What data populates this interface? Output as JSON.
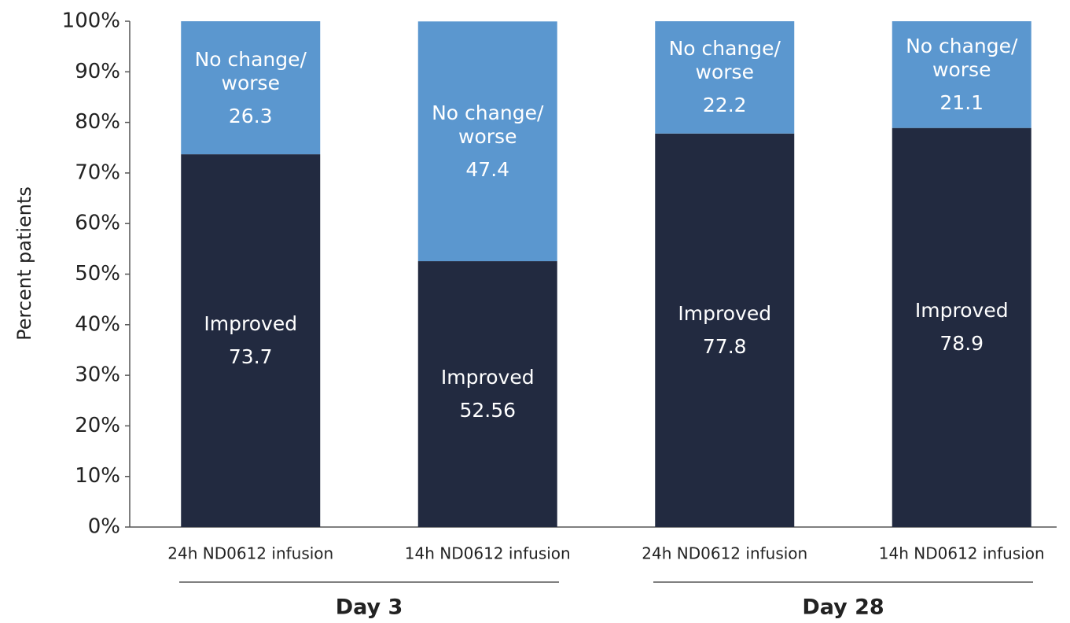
{
  "chart_data": {
    "type": "stacked_bar",
    "y_label": "Percent patients",
    "categories": [
      "24h ND0612 infusion",
      "14h ND0612 infusion",
      "24h ND0612 infusion",
      "14h ND0612 infusion"
    ],
    "groups": [
      "Day 3",
      "Day 28"
    ],
    "series": [
      {
        "name": "Improved",
        "color": "#222a40",
        "values": [
          73.7,
          52.56,
          77.8,
          78.9
        ]
      },
      {
        "name": "No change/ worse",
        "color": "#5b97cf",
        "values": [
          26.3,
          47.4,
          22.2,
          21.1
        ]
      }
    ],
    "ylim": [
      0,
      100
    ],
    "yticks": [
      {
        "value": 0,
        "label": "0%"
      },
      {
        "value": 10,
        "label": "10%"
      },
      {
        "value": 20,
        "label": "20%"
      },
      {
        "value": 30,
        "label": "30%"
      },
      {
        "value": 40,
        "label": "40%"
      },
      {
        "value": 50,
        "label": "50%"
      },
      {
        "value": 60,
        "label": "60%"
      },
      {
        "value": 70,
        "label": "70%"
      },
      {
        "value": 80,
        "label": "80%"
      },
      {
        "value": 90,
        "label": "90%"
      },
      {
        "value": 100,
        "label": "100%"
      }
    ],
    "grid": false
  }
}
